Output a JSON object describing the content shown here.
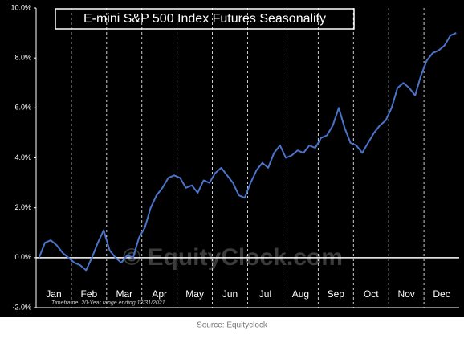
{
  "chart_data": {
    "type": "line",
    "title": "E-mini S&P 500 Index Futures Seasonality",
    "watermark": "© EquityClock.com",
    "note": "Timeframe:   20-Year range ending 12/31/2021",
    "source": "Source: Equityclock",
    "categories": [
      null,
      null,
      null,
      "Jan",
      null,
      null,
      null,
      null,
      null,
      "Feb",
      null,
      null,
      null,
      null,
      null,
      "Mar",
      null,
      null,
      null,
      null,
      null,
      "Apr",
      null,
      null,
      null,
      null,
      null,
      "May",
      null,
      null,
      null,
      null,
      null,
      "Jun",
      null,
      null,
      null,
      null,
      null,
      "Jul",
      null,
      null,
      null,
      null,
      null,
      "Aug",
      null,
      null,
      null,
      null,
      null,
      "Sep",
      null,
      null,
      null,
      null,
      null,
      "Oct",
      null,
      null,
      null,
      null,
      null,
      "Nov",
      null,
      null,
      null,
      null,
      null,
      "Dec",
      null,
      null
    ],
    "series": [
      {
        "name": "Seasonality",
        "color": "#4a74c9",
        "values": [
          0,
          0.6,
          0.7,
          0.5,
          0.2,
          0.0,
          -0.2,
          -0.3,
          -0.5,
          0.0,
          0.6,
          1.1,
          0.3,
          0.0,
          -0.2,
          0.1,
          0.0,
          0.8,
          1.2,
          2.0,
          2.5,
          2.8,
          3.2,
          3.3,
          3.2,
          2.8,
          2.9,
          2.6,
          3.1,
          3.0,
          3.4,
          3.6,
          3.3,
          3.0,
          2.5,
          2.4,
          3.0,
          3.5,
          3.8,
          3.6,
          4.2,
          4.5,
          4.0,
          4.1,
          4.3,
          4.2,
          4.5,
          4.4,
          4.8,
          4.9,
          5.3,
          6.0,
          5.2,
          4.6,
          4.5,
          4.2,
          4.6,
          5.0,
          5.3,
          5.5,
          6.0,
          6.8,
          7.0,
          6.8,
          6.5,
          7.3,
          7.9,
          8.2,
          8.3,
          8.5,
          8.9,
          9.0
        ]
      }
    ],
    "ylim": [
      -2,
      10
    ],
    "yticks": [
      {
        "value": -2,
        "label": "-2.0%"
      },
      {
        "value": 0,
        "label": "0.0%"
      },
      {
        "value": 2,
        "label": "2.0%"
      },
      {
        "value": 4,
        "label": "4.0%"
      },
      {
        "value": 6,
        "label": "6.0%"
      },
      {
        "value": 8,
        "label": "8.0%"
      },
      {
        "value": 10,
        "label": "10.0%"
      }
    ],
    "grid": false
  }
}
